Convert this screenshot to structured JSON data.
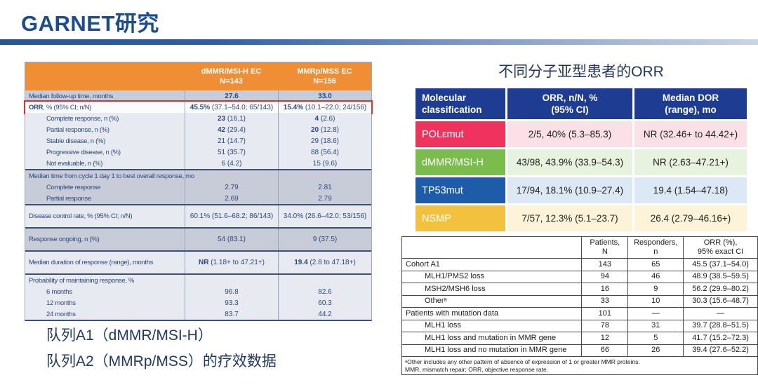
{
  "slide_title": "GARNET研究",
  "left_table": {
    "header": {
      "col1_line1": "dMMR/MSI-H EC",
      "col1_line2": "N=143",
      "col2_line1": "MMRp/MSS EC",
      "col2_line2": "N=156"
    },
    "rows": [
      {
        "lr": "Median follow-up time, months",
        "c1b": "27.6",
        "c2b": "33.0",
        "shade": "gray"
      },
      {
        "lb": "ORR",
        "lr": ", % (95% CI; n/N)",
        "c1b": "45.5%",
        "c1r": " (37.1–54.0; 65/143)",
        "c2b": "15.4%",
        "c2r": " (10.1–22.0; 24/156)",
        "shade": "white",
        "highlight": true
      },
      {
        "lr": "Complete response, n (%)",
        "indent": true,
        "c1b": "23",
        "c1r": " (16.1)",
        "c2b": "4",
        "c2r": " (2.6)",
        "shade": "light"
      },
      {
        "lr": "Partial response, n (%)",
        "indent": true,
        "c1b": "42",
        "c1r": " (29.4)",
        "c2b": "20",
        "c2r": " (12.8)",
        "shade": "light"
      },
      {
        "lr": "Stable disease, n (%)",
        "indent": true,
        "c1r": "21 (14.7)",
        "c2r": "29 (18.6)",
        "shade": "light"
      },
      {
        "lr": "Progressive disease, n (%)",
        "indent": true,
        "c1r": "51 (35.7)",
        "c2r": "88 (56.4)",
        "shade": "light"
      },
      {
        "lr": "Not evaluable, n (%)",
        "indent": true,
        "c1r": "6 (4.2)",
        "c2r": "15 (9.6)",
        "shade": "light"
      },
      {
        "lr": "Median time from cycle 1 day 1 to best overall response, mo",
        "shade": "gray",
        "rule": true
      },
      {
        "lr": "Complete response",
        "indent": true,
        "c1r": "2.79",
        "c2r": "2.81",
        "shade": "gray"
      },
      {
        "lr": "Partial response",
        "indent": true,
        "c1r": "2.69",
        "c2r": "2.79",
        "shade": "gray"
      },
      {
        "lr": "Disease control rate, % (95% CI; n/N)",
        "c1r": "60.1% (51.6–68.2; 86/143)",
        "c2r": "34.0% (26.6–42.0; 53/156)",
        "shade": "light",
        "tall": true,
        "rule": true
      },
      {
        "lr": "Response ongoing, n (%)",
        "c1r": "54 (83.1)",
        "c2r": "9 (37.5)",
        "shade": "gray",
        "tall": true,
        "rule": true
      },
      {
        "lr": "Median duration of response (range), months",
        "c1b": "NR",
        "c1r": " (1.18+ to 47.21+)",
        "c2b": "19.4",
        "c2r": " (2.8 to 47.18+)",
        "shade": "light",
        "tall": true,
        "rule": true
      },
      {
        "lr": "Probability of maintaining response, %",
        "shade": "light",
        "rule": true
      },
      {
        "lr": "6 months",
        "indent": true,
        "c1r": "96.8",
        "c2r": "82.6",
        "shade": "light"
      },
      {
        "lr": "12 months",
        "indent": true,
        "c1r": "93.3",
        "c2r": "60.3",
        "shade": "light"
      },
      {
        "lr": "24 months",
        "indent": true,
        "c1r": "83.7",
        "c2r": "44.2",
        "shade": "light"
      }
    ]
  },
  "molecular": {
    "title": "不同分子亚型患者的ORR",
    "header": {
      "col1_l1": "Molecular",
      "col1_l2": "classification",
      "col2_l1": "ORR, n/N, %",
      "col2_l2": "(95% CI)",
      "col3_l1": "Median DOR",
      "col3_l2": "(range), mo"
    },
    "rows": [
      {
        "name": "POLεmut",
        "orr": "2/5, 40% (5.3–85.3)",
        "dor": "NR (32.46+ to 44.42+)",
        "name_bg": "#F0325F",
        "name_color": "#FFFFFF",
        "cell_bg": "#FBE0E8"
      },
      {
        "name": "dMMR/MSI-H",
        "orr": "43/98, 43.9% (33.9–54.3)",
        "dor": "NR (2.63–47.21+)",
        "name_bg": "#7BBD4D",
        "name_color": "#FFFFFF",
        "cell_bg": "#E8F3DF"
      },
      {
        "name": "TP53mut",
        "orr": "17/94, 18.1% (10.9–27.4)",
        "dor": "19.4 (1.54–47.18)",
        "name_bg": "#1E5CAA",
        "name_color": "#FFFFFF",
        "cell_bg": "#DCE8F5"
      },
      {
        "name": "NSMP",
        "orr": "7/57, 12.3% (5.1–23.7)",
        "dor": "26.4 (2.79–46.16+)",
        "name_bg": "#F2C23E",
        "name_color": "#FFFFFF",
        "cell_bg": "#FCF3D9"
      }
    ]
  },
  "cohort": {
    "header": {
      "patients_l1": "Patients,",
      "patients_l2": "N",
      "responders_l1": "Responders,",
      "responders_l2": "n",
      "orr_l1": "ORR (%),",
      "orr_l2": "95% exact CI"
    },
    "rows": [
      {
        "label": "Cohort A1",
        "n": "143",
        "r": "65",
        "orr": "45.5 (37.1–54.0)"
      },
      {
        "label": "MLH1/PMS2 loss",
        "indent": true,
        "n": "94",
        "r": "46",
        "orr": "48.9 (38.5–59.5)"
      },
      {
        "label": "MSH2/MSH6 loss",
        "indent": true,
        "n": "16",
        "r": "9",
        "orr": "56.2 (29.9–80.2)"
      },
      {
        "label": "Otherᵃ",
        "indent": true,
        "n": "33",
        "r": "10",
        "orr": "30.3 (15.6–48.7)"
      },
      {
        "label": "Patients with mutation data",
        "n": "101",
        "r": "—",
        "orr": "—"
      },
      {
        "label": "MLH1 loss",
        "indent": true,
        "n": "78",
        "r": "31",
        "orr": "39.7 (28.8–51.5)"
      },
      {
        "label": "MLH1 loss and mutation in MMR gene",
        "indent": true,
        "n": "12",
        "r": "5",
        "orr": "41.7 (15.2–72.3)"
      },
      {
        "label": "MLH1 loss and no mutation in MMR gene",
        "indent": true,
        "n": "66",
        "r": "26",
        "orr": "39.4 (27.6–52.2)"
      }
    ],
    "footnote_line1": "ᵃOther includes any other pattern of absence of expression of 1 or greater MMR proteins.",
    "footnote_line2": "MMR, mismatch repair; ORR, objective response rate."
  },
  "caption": {
    "line1": "队列A1（dMMR/MSI-H）",
    "line2": "队列A2（MMRp/MSS）的疗效数据"
  },
  "colors": {
    "title_blue": "#1C4B8E",
    "table_header_orange": "#EF8E35",
    "molecular_header_navy": "#1E3D92",
    "polemut_pink": "#F0325F",
    "dmmr_green": "#7BBD4D",
    "tp53_blue": "#1E5CAA",
    "nsmp_gold": "#F2C23E",
    "highlight_red": "#E0302A"
  }
}
